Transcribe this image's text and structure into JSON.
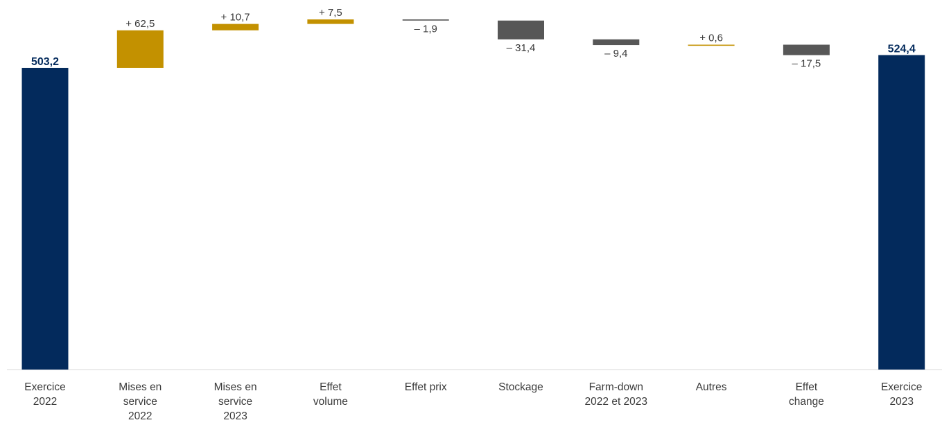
{
  "chart_data": {
    "type": "bar",
    "subtype": "waterfall",
    "title": "",
    "xlabel": "",
    "ylabel": "",
    "ylim": [
      0,
      600
    ],
    "grid": false,
    "legend": "none",
    "colors": {
      "total": "#032a5c",
      "increase": "#c39100",
      "decrease": "#575757",
      "axis": "#d9d9d9",
      "text": "#3a3a3a"
    },
    "items": [
      {
        "category": [
          "Exercice",
          "2022"
        ],
        "kind": "total",
        "value": 503.2,
        "label": "503,2"
      },
      {
        "category": [
          "Mises en",
          "service",
          "2022"
        ],
        "kind": "delta",
        "value": 62.5,
        "label": "+  62,5"
      },
      {
        "category": [
          "Mises en",
          "service",
          "2023"
        ],
        "kind": "delta",
        "value": 10.7,
        "label": "+  10,7"
      },
      {
        "category": [
          "Effet",
          "volume"
        ],
        "kind": "delta",
        "value": 7.5,
        "label": "+  7,5"
      },
      {
        "category": [
          "Effet prix"
        ],
        "kind": "delta",
        "value": -1.9,
        "label": "– 1,9"
      },
      {
        "category": [
          "Stockage"
        ],
        "kind": "delta",
        "value": -31.4,
        "label": "– 31,4"
      },
      {
        "category": [
          "Farm-down",
          "2022 et 2023"
        ],
        "kind": "delta",
        "value": -9.4,
        "label": "– 9,4"
      },
      {
        "category": [
          "Autres"
        ],
        "kind": "delta",
        "value": 0.6,
        "label": "+  0,6"
      },
      {
        "category": [
          "Effet",
          "change"
        ],
        "kind": "delta",
        "value": -17.5,
        "label": "– 17,5"
      },
      {
        "category": [
          "Exercice",
          "2023"
        ],
        "kind": "total",
        "value": 524.4,
        "label": "524,4"
      }
    ]
  }
}
